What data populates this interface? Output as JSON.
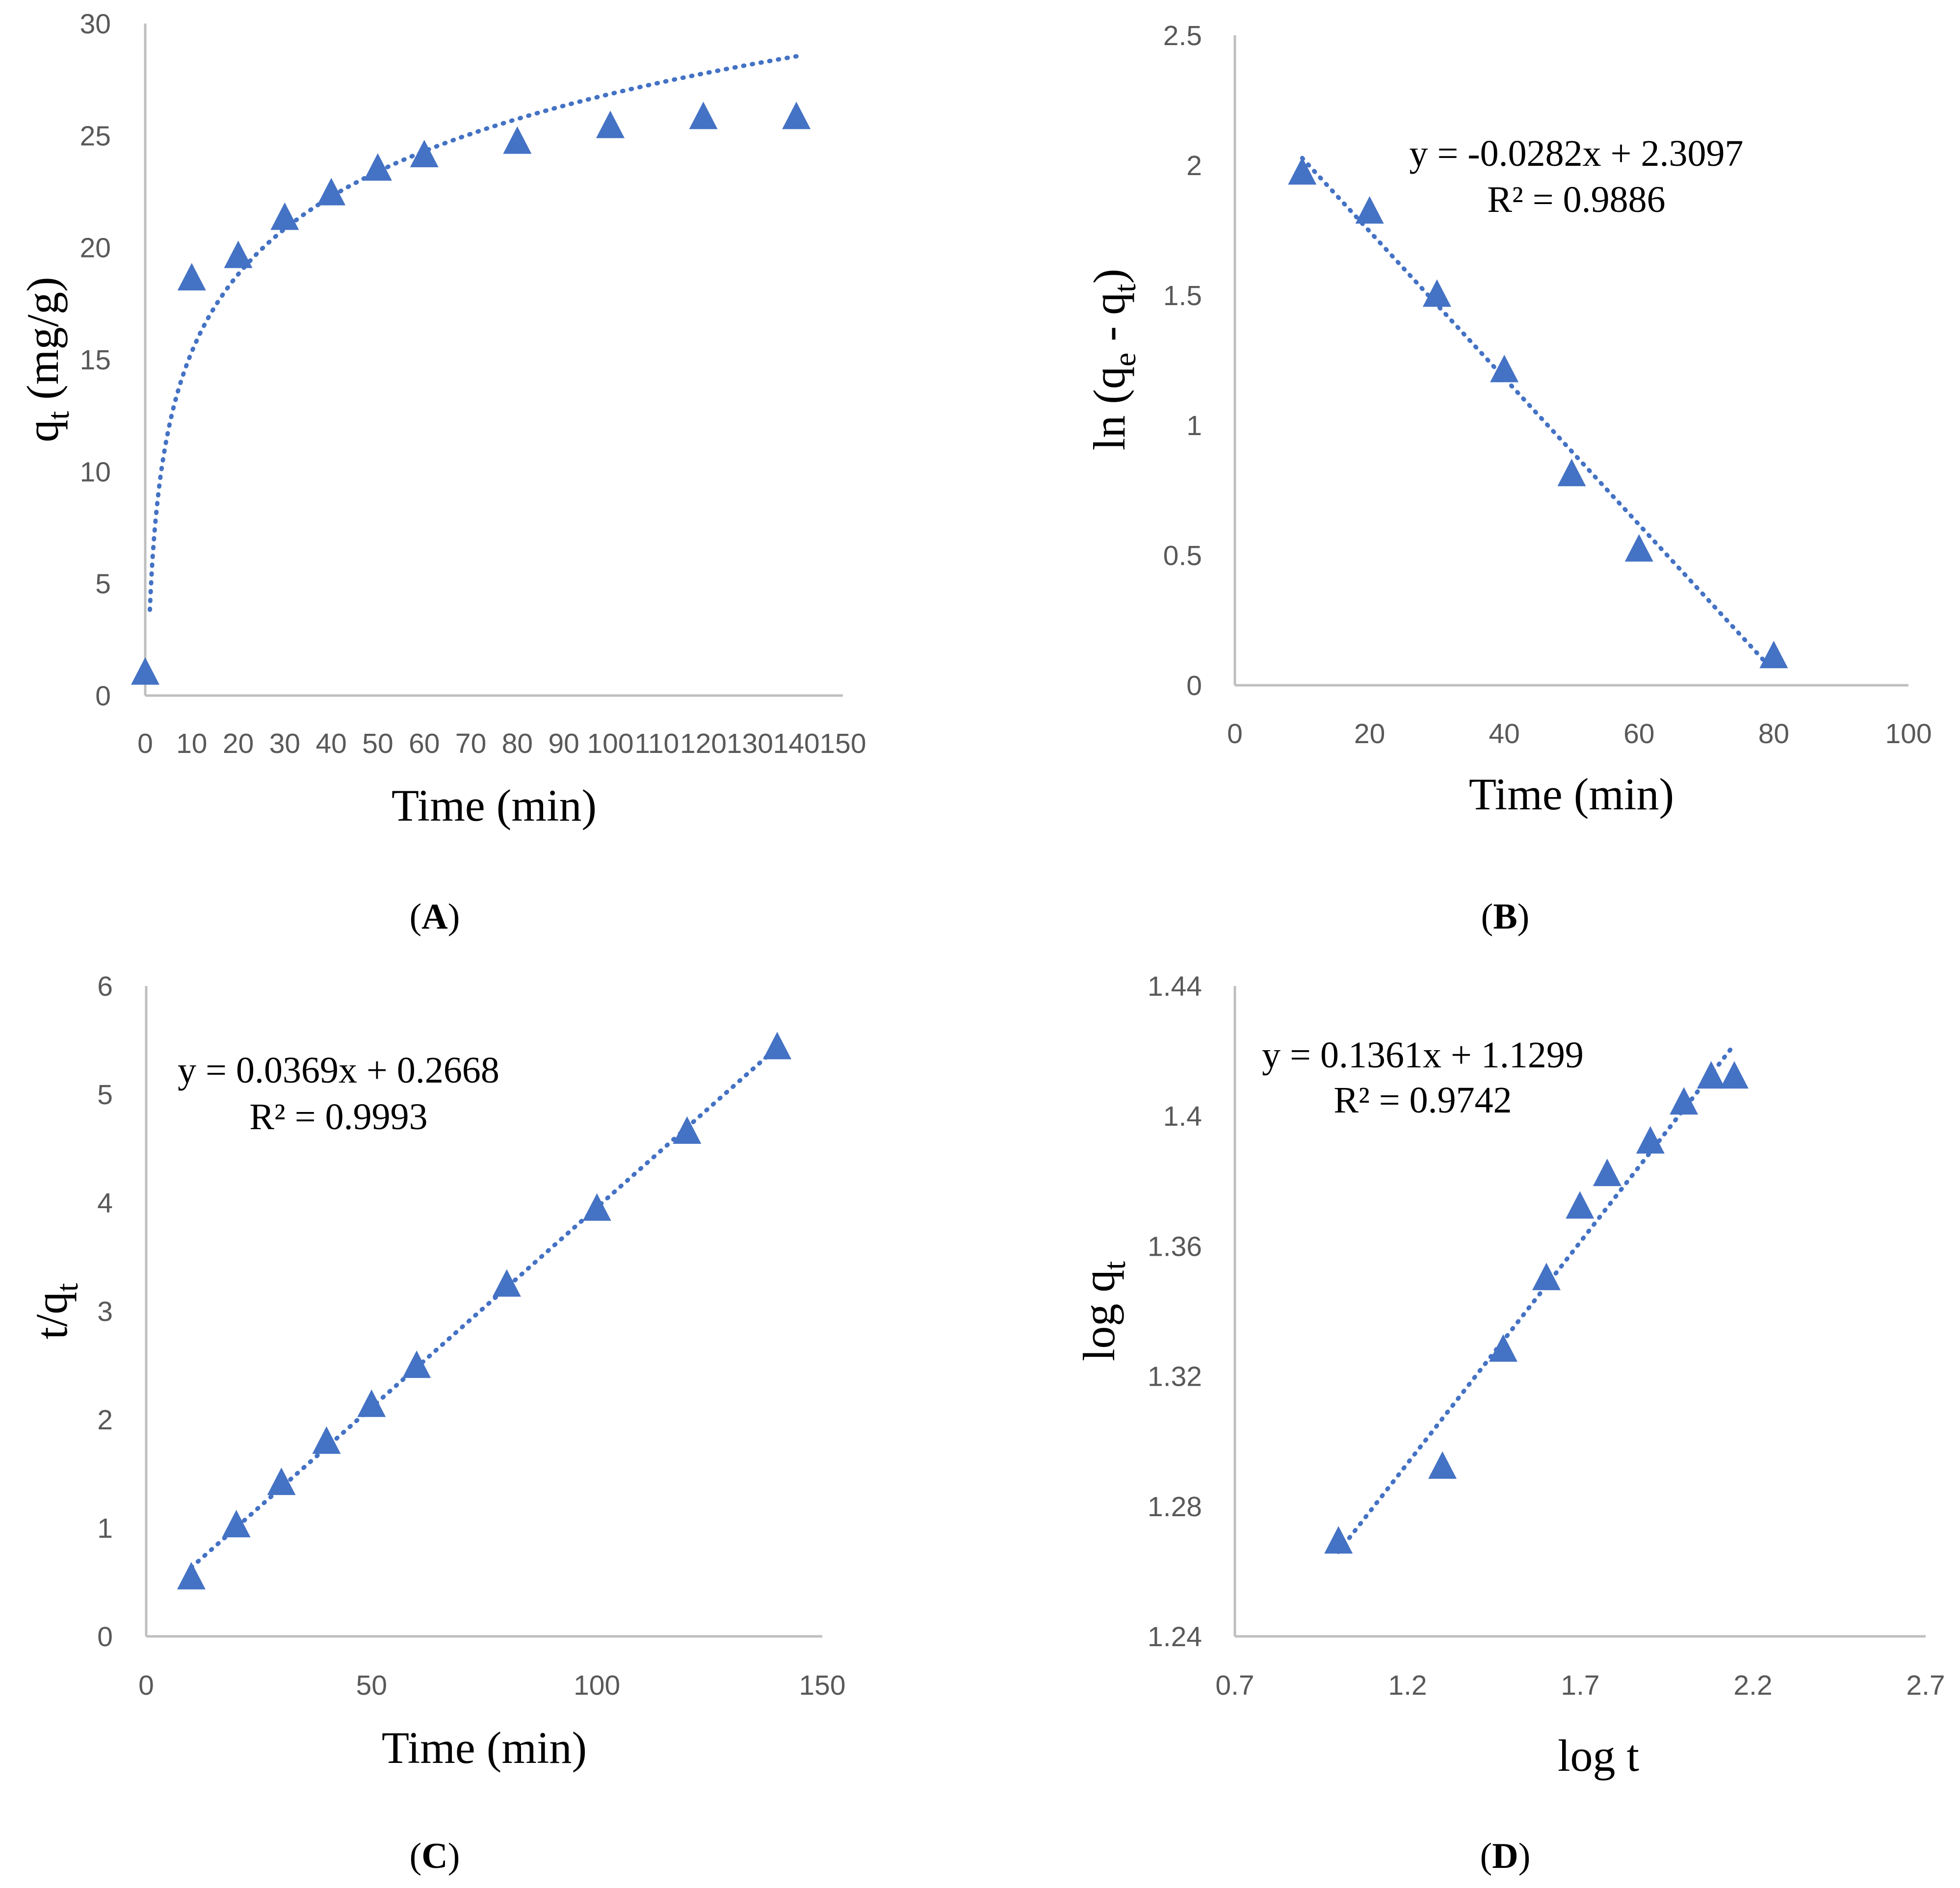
{
  "colors": {
    "marker": "#4472C4",
    "trend": "#4472C4",
    "axis": "#BFBFBF",
    "tick_text": "#595959"
  },
  "chart_data": [
    {
      "panel": "A",
      "panel_label": "A",
      "type": "scatter",
      "xlabel": "Time (min)",
      "ylabel": {
        "main": "q",
        "sub": "t",
        "tail": " (mg/g)"
      },
      "xlim": [
        0,
        150
      ],
      "ylim": [
        0,
        30
      ],
      "xticks": [
        0,
        10,
        20,
        30,
        40,
        50,
        60,
        70,
        80,
        90,
        100,
        110,
        120,
        130,
        140,
        150
      ],
      "yticks": [
        0,
        5,
        10,
        15,
        20,
        25,
        30
      ],
      "x": [
        0,
        10,
        20,
        30,
        40,
        50,
        60,
        80,
        100,
        120,
        140
      ],
      "y": [
        1.0,
        18.6,
        19.6,
        21.3,
        22.4,
        23.5,
        24.1,
        24.7,
        25.4,
        25.8,
        25.8
      ],
      "trendline": {
        "type": "log",
        "a": 5.0,
        "b": 3.83,
        "xrange": [
          1,
          140
        ]
      },
      "equation": "",
      "r2": ""
    },
    {
      "panel": "B",
      "panel_label": "B",
      "type": "scatter",
      "xlabel": "Time (min)",
      "ylabel": {
        "main": "ln (q",
        "sub": "e",
        "mid": " - q",
        "sub2": "t",
        "tail": ")"
      },
      "xlim": [
        0,
        100
      ],
      "ylim": [
        0,
        2.5
      ],
      "xticks": [
        0,
        20,
        40,
        60,
        80,
        100
      ],
      "yticks": [
        0,
        0.5,
        1,
        1.5,
        2,
        2.5
      ],
      "x": [
        10,
        20,
        30,
        40,
        50,
        60,
        80
      ],
      "y": [
        1.97,
        1.82,
        1.5,
        1.21,
        0.81,
        0.52,
        0.11
      ],
      "trendline": {
        "type": "linear",
        "slope": -0.0282,
        "intercept": 2.3097,
        "xrange": [
          10,
          80
        ]
      },
      "equation": "y = -0.0282x + 2.3097",
      "r2": "R² = 0.9886"
    },
    {
      "panel": "C",
      "panel_label": "C",
      "type": "scatter",
      "xlabel": "Time (min)",
      "ylabel": {
        "main": "t/q",
        "sub": "t",
        "tail": ""
      },
      "xlim": [
        0,
        150
      ],
      "ylim": [
        0,
        6
      ],
      "xticks": [
        0,
        50,
        100,
        150
      ],
      "yticks": [
        0,
        1,
        2,
        3,
        4,
        5,
        6
      ],
      "x": [
        10,
        20,
        30,
        40,
        50,
        60,
        80,
        100,
        120,
        140
      ],
      "y": [
        0.54,
        1.02,
        1.41,
        1.79,
        2.13,
        2.49,
        3.24,
        3.94,
        4.65,
        5.43
      ],
      "trendline": {
        "type": "linear",
        "slope": 0.0369,
        "intercept": 0.2668,
        "xrange": [
          10,
          140
        ]
      },
      "equation": "y = 0.0369x + 0.2668",
      "r2": "R² = 0.9993"
    },
    {
      "panel": "D",
      "panel_label": "D",
      "type": "scatter",
      "xlabel": "log t",
      "ylabel": {
        "main": "log q",
        "sub": "t",
        "tail": ""
      },
      "xlim": [
        0.7,
        2.7
      ],
      "ylim": [
        1.24,
        1.44
      ],
      "xticks": [
        0.7,
        1.2,
        1.7,
        2.2,
        2.7
      ],
      "yticks": [
        1.24,
        1.28,
        1.32,
        1.36,
        1.4,
        1.44
      ],
      "xtick_labels": [
        "0.7",
        "1.2",
        "1.7",
        "2.2",
        "2.7"
      ],
      "ytick_labels": [
        "1.24",
        "1.28",
        "1.32",
        "1.36",
        "1.4",
        "1.44"
      ],
      "x": [
        1.0,
        1.301,
        1.477,
        1.602,
        1.699,
        1.778,
        1.903,
        2.0,
        2.079,
        2.146
      ],
      "y": [
        1.269,
        1.292,
        1.328,
        1.35,
        1.372,
        1.382,
        1.392,
        1.404,
        1.412,
        1.412
      ],
      "trendline": {
        "type": "linear",
        "slope": 0.1361,
        "intercept": 1.1299,
        "xrange": [
          1.0,
          2.146
        ]
      },
      "equation": "y = 0.1361x + 1.1299",
      "r2": "R² = 0.9742"
    }
  ]
}
